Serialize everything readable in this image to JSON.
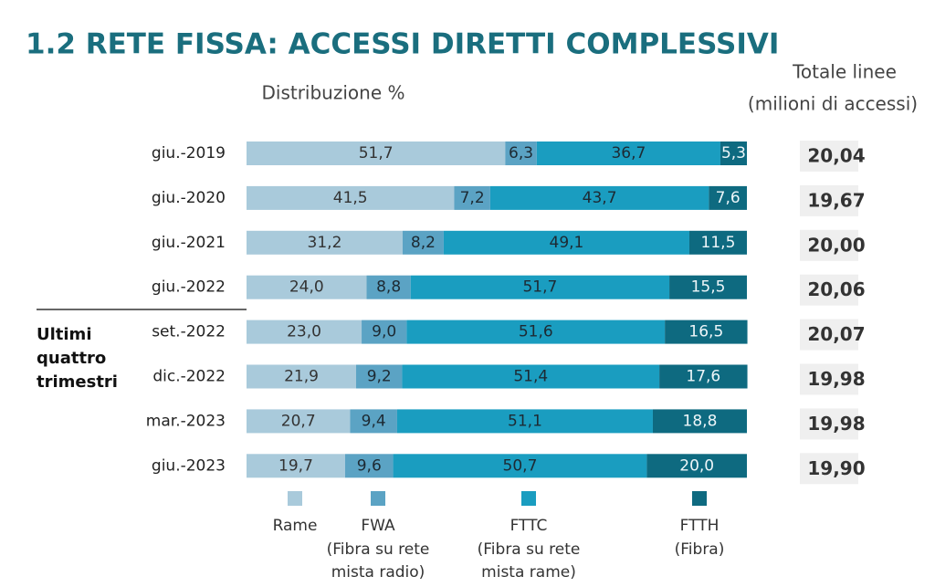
{
  "chart_data": {
    "type": "stacked-bar-horizontal",
    "title": "1.2 RETE FISSA: ACCESSI DIRETTI COMPLESSIVI",
    "subtitle": "Distribuzione %",
    "categories": [
      "giu.-2019",
      "giu.-2020",
      "giu.-2021",
      "giu.-2022",
      "set.-2022",
      "dic.-2022",
      "mar.-2023",
      "giu.-2023"
    ],
    "xlim": [
      0,
      100
    ],
    "series": [
      {
        "name": "Rame",
        "description": [],
        "color": "#a9cadb",
        "values": [
          51.7,
          41.5,
          31.2,
          24.0,
          23.0,
          21.9,
          20.7,
          19.7
        ],
        "value_labels": [
          "51,7",
          "41,5",
          "31,2",
          "24,0",
          "23,0",
          "21,9",
          "20,7",
          "19,7"
        ]
      },
      {
        "name": "FWA",
        "description": [
          "(Fibra su rete",
          "mista radio)"
        ],
        "color": "#5ba3c4",
        "values": [
          6.3,
          7.2,
          8.2,
          8.8,
          9.0,
          9.2,
          9.4,
          9.6
        ],
        "value_labels": [
          "6,3",
          "7,2",
          "8,2",
          "8,8",
          "9,0",
          "9,2",
          "9,4",
          "9,6"
        ]
      },
      {
        "name": "FTTC",
        "description": [
          "(Fibra su rete",
          "mista rame)"
        ],
        "color": "#1a9dc0",
        "values": [
          36.7,
          43.7,
          49.1,
          51.7,
          51.6,
          51.4,
          51.1,
          50.7
        ],
        "value_labels": [
          "36,7",
          "43,7",
          "49,1",
          "51,7",
          "51,6",
          "51,4",
          "51,1",
          "50,7"
        ]
      },
      {
        "name": "FTTH",
        "description": [
          "(Fibra)"
        ],
        "color": "#0e6a80",
        "values": [
          5.3,
          7.6,
          11.5,
          15.5,
          16.5,
          17.6,
          18.8,
          20.0
        ],
        "value_labels": [
          "5,3",
          "7,6",
          "11,5",
          "15,5",
          "16,5",
          "17,6",
          "18,8",
          "20,0"
        ]
      }
    ],
    "totals": {
      "title": "Totale linee",
      "subtitle": "(milioni di accessi)",
      "values": [
        20.04,
        19.67,
        20.0,
        20.06,
        20.07,
        19.98,
        19.98,
        19.9
      ],
      "value_labels": [
        "20,04",
        "19,67",
        "20,00",
        "20,06",
        "20,07",
        "19,98",
        "19,98",
        "19,90"
      ]
    },
    "group_label": [
      "Ultimi",
      "quattro",
      "trimestri"
    ]
  }
}
